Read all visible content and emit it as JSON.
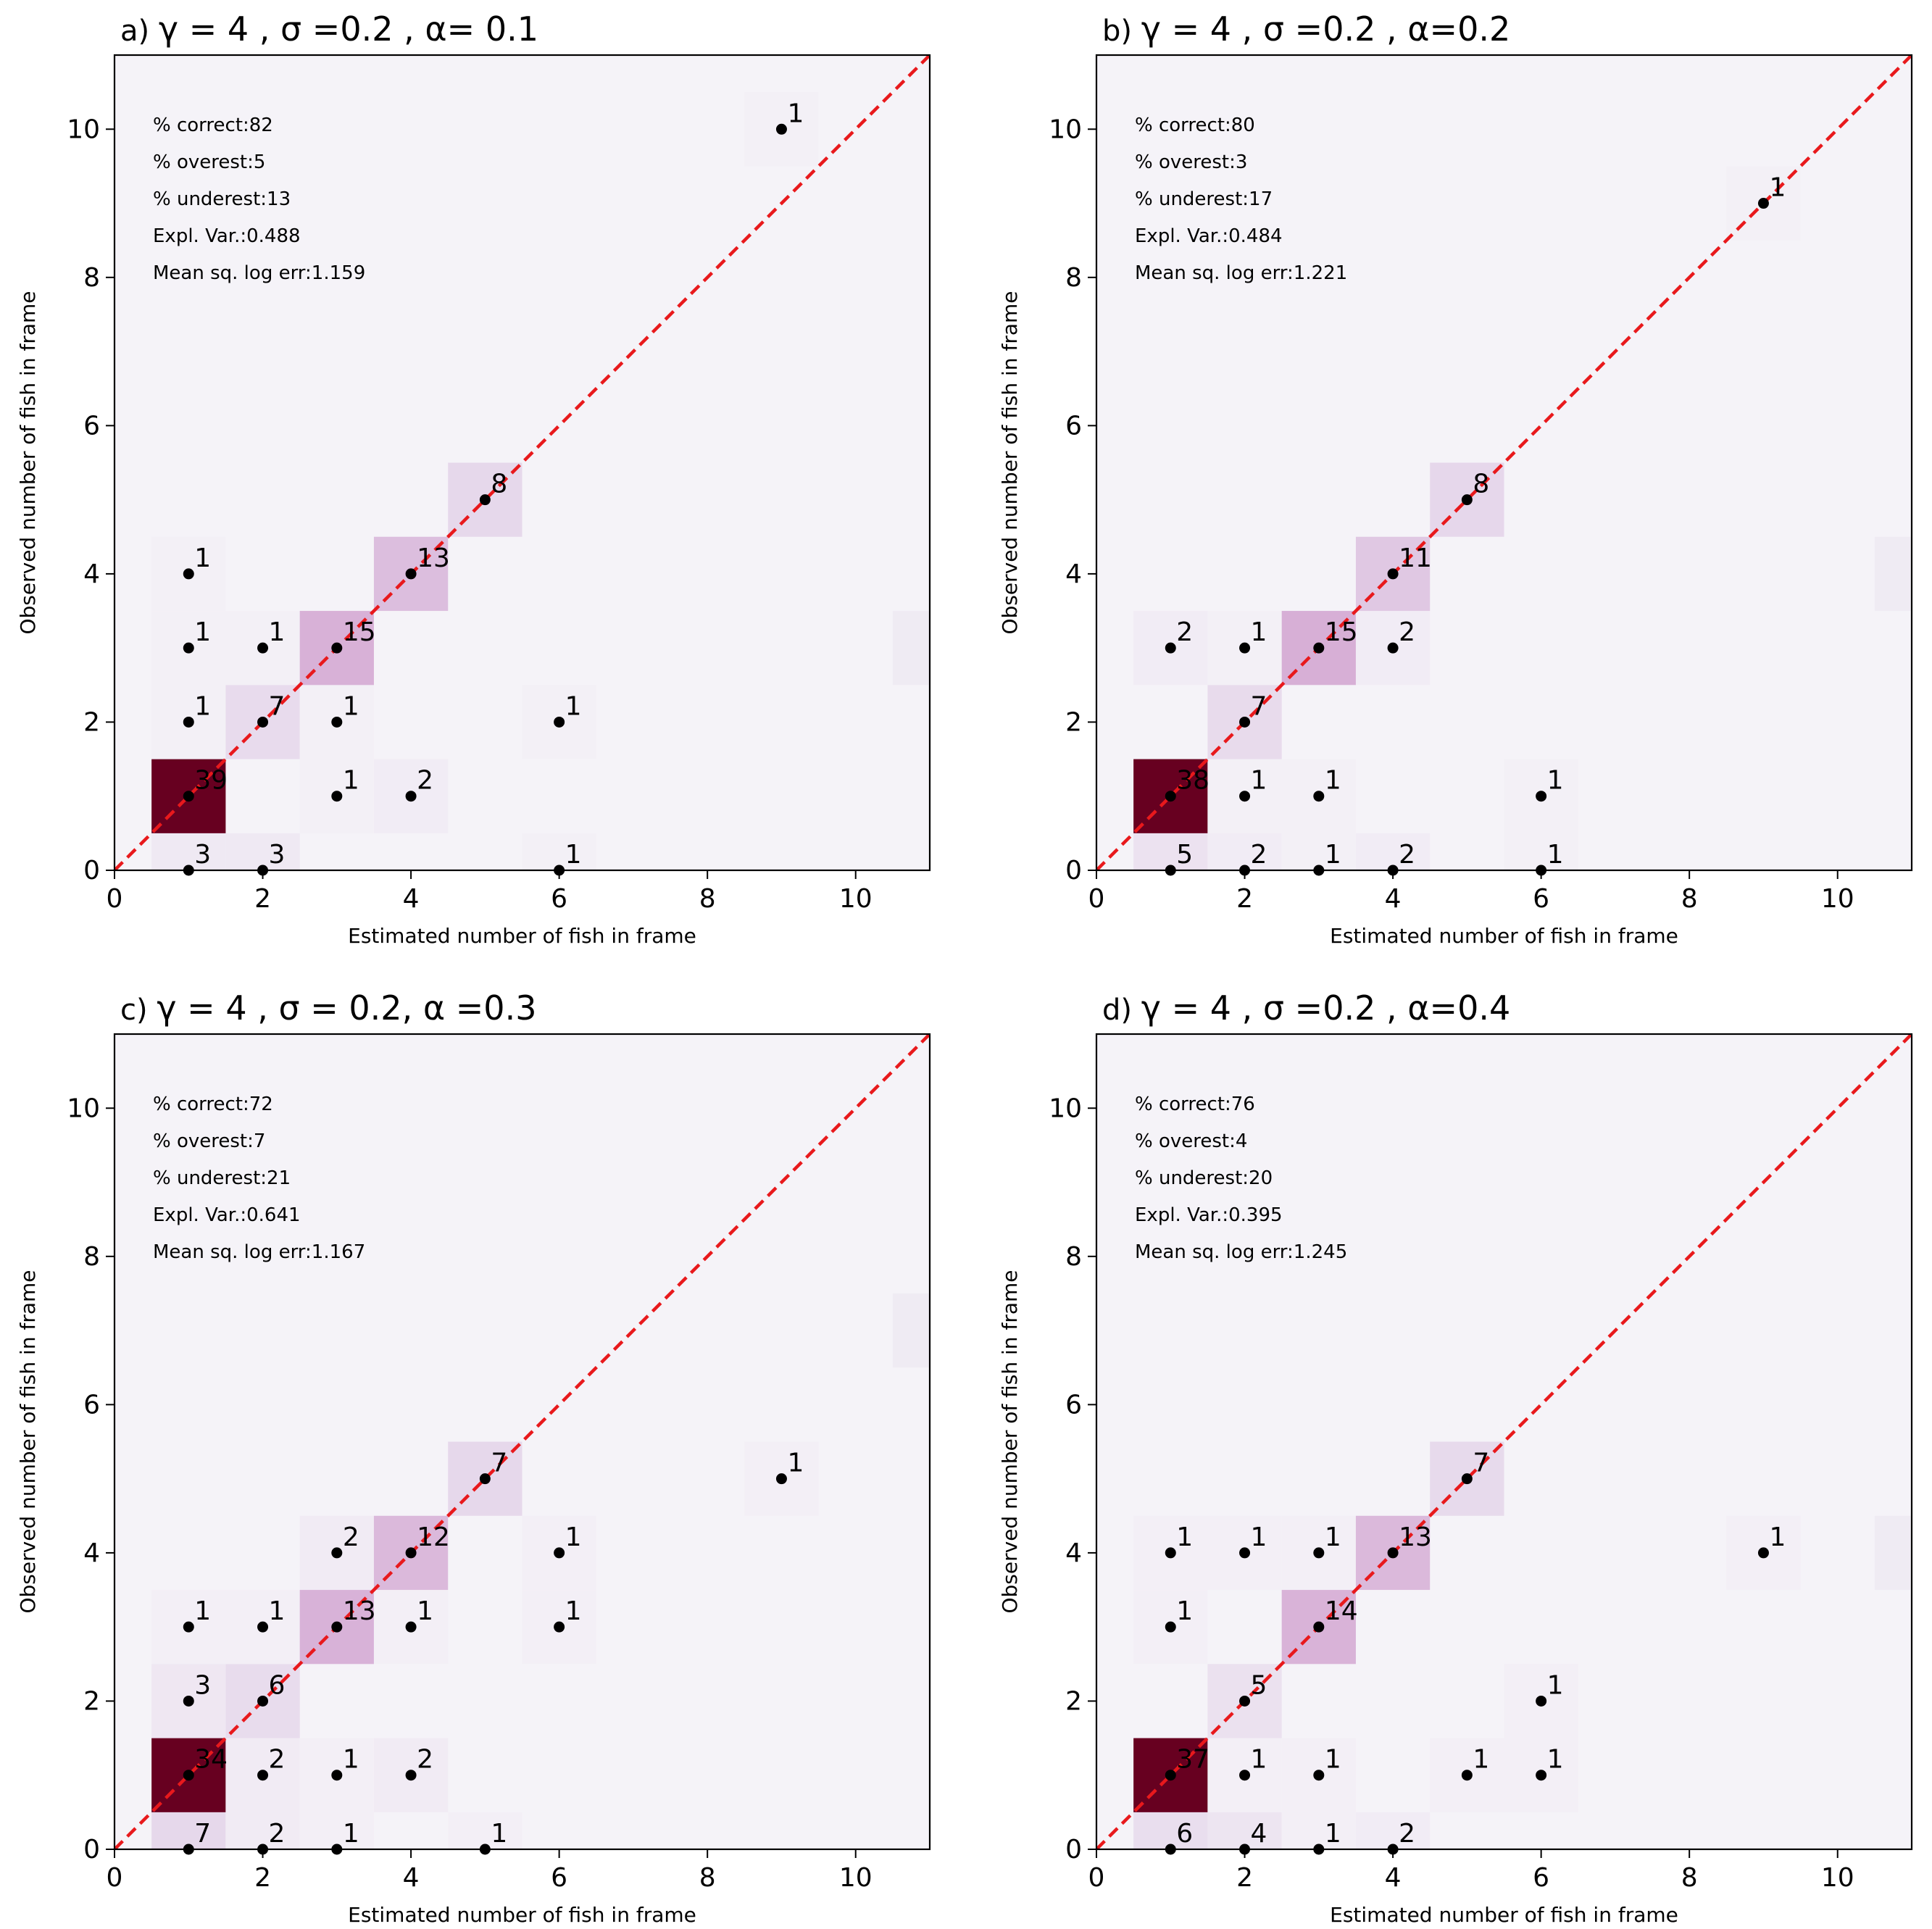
{
  "figure": {
    "background": "#ffffff",
    "plot_background": "#f5f3f8",
    "diagonal_color": "#e8191c",
    "dot_color": "#000000",
    "colormap": [
      "#f5f3f8",
      "#e3d2e8",
      "#cf95c9",
      "#b0467f",
      "#670020"
    ]
  },
  "chart_data": [
    {
      "type": "heatmap",
      "title_letter": "a)",
      "title_gamma": "γ = 4 ,",
      "title_sigma": "σ =0.2 ,",
      "title_alpha": "α= 0.1",
      "xlabel": "Estimated number of fish in frame",
      "ylabel": "Observed number of fish in frame",
      "xlim": [
        0,
        11
      ],
      "ylim": [
        0,
        11
      ],
      "xticks": [
        0,
        2,
        4,
        6,
        8,
        10
      ],
      "yticks": [
        0,
        2,
        4,
        6,
        8,
        10
      ],
      "stats": [
        "% correct:82",
        "% overest:5",
        "% underest:13",
        "Expl. Var.:0.488",
        "Mean sq. log err:1.159"
      ],
      "cells": [
        {
          "x": 1,
          "y": 0,
          "count": 3
        },
        {
          "x": 2,
          "y": 0,
          "count": 3
        },
        {
          "x": 6,
          "y": 0,
          "count": 1
        },
        {
          "x": 1,
          "y": 1,
          "count": 39
        },
        {
          "x": 3,
          "y": 1,
          "count": 1
        },
        {
          "x": 4,
          "y": 1,
          "count": 2
        },
        {
          "x": 1,
          "y": 2,
          "count": 1
        },
        {
          "x": 2,
          "y": 2,
          "count": 7
        },
        {
          "x": 3,
          "y": 2,
          "count": 1
        },
        {
          "x": 6,
          "y": 2,
          "count": 1
        },
        {
          "x": 1,
          "y": 3,
          "count": 1
        },
        {
          "x": 2,
          "y": 3,
          "count": 1
        },
        {
          "x": 3,
          "y": 3,
          "count": 15
        },
        {
          "x": 1,
          "y": 4,
          "count": 1
        },
        {
          "x": 4,
          "y": 4,
          "count": 13
        },
        {
          "x": 5,
          "y": 5,
          "count": 8
        },
        {
          "x": 9,
          "y": 10,
          "count": 1
        }
      ],
      "faint_cells": [
        {
          "x": 11,
          "y": 3
        }
      ]
    },
    {
      "type": "heatmap",
      "title_letter": "b)",
      "title_gamma": "γ = 4 ,",
      "title_sigma": "σ =0.2 ,",
      "title_alpha": "α=0.2",
      "xlabel": "Estimated number of fish in frame",
      "ylabel": "Observed number of fish in frame",
      "xlim": [
        0,
        11
      ],
      "ylim": [
        0,
        11
      ],
      "xticks": [
        0,
        2,
        4,
        6,
        8,
        10
      ],
      "yticks": [
        0,
        2,
        4,
        6,
        8,
        10
      ],
      "stats": [
        "% correct:80",
        "% overest:3",
        "% underest:17",
        "Expl. Var.:0.484",
        "Mean sq. log err:1.221"
      ],
      "cells": [
        {
          "x": 1,
          "y": 0,
          "count": 5
        },
        {
          "x": 2,
          "y": 0,
          "count": 2
        },
        {
          "x": 3,
          "y": 0,
          "count": 1
        },
        {
          "x": 4,
          "y": 0,
          "count": 2
        },
        {
          "x": 6,
          "y": 0,
          "count": 1
        },
        {
          "x": 1,
          "y": 1,
          "count": 38
        },
        {
          "x": 2,
          "y": 1,
          "count": 1
        },
        {
          "x": 3,
          "y": 1,
          "count": 1
        },
        {
          "x": 6,
          "y": 1,
          "count": 1
        },
        {
          "x": 2,
          "y": 2,
          "count": 7
        },
        {
          "x": 1,
          "y": 3,
          "count": 2
        },
        {
          "x": 2,
          "y": 3,
          "count": 1
        },
        {
          "x": 3,
          "y": 3,
          "count": 15
        },
        {
          "x": 4,
          "y": 3,
          "count": 2
        },
        {
          "x": 4,
          "y": 4,
          "count": 11
        },
        {
          "x": 5,
          "y": 5,
          "count": 8
        },
        {
          "x": 9,
          "y": 9,
          "count": 1
        }
      ],
      "faint_cells": [
        {
          "x": 11,
          "y": 4
        }
      ]
    },
    {
      "type": "heatmap",
      "title_letter": "c)",
      "title_gamma": "γ = 4 ,",
      "title_sigma": "σ = 0.2,",
      "title_alpha": "α =0.3",
      "xlabel": "Estimated number of fish in frame",
      "ylabel": "Observed number of fish in frame",
      "xlim": [
        0,
        11
      ],
      "ylim": [
        0,
        11
      ],
      "xticks": [
        0,
        2,
        4,
        6,
        8,
        10
      ],
      "yticks": [
        0,
        2,
        4,
        6,
        8,
        10
      ],
      "stats": [
        "% correct:72",
        "% overest:7",
        "% underest:21",
        "Expl. Var.:0.641",
        "Mean sq. log err:1.167"
      ],
      "cells": [
        {
          "x": 1,
          "y": 0,
          "count": 7
        },
        {
          "x": 2,
          "y": 0,
          "count": 2
        },
        {
          "x": 3,
          "y": 0,
          "count": 1
        },
        {
          "x": 5,
          "y": 0,
          "count": 1
        },
        {
          "x": 1,
          "y": 1,
          "count": 34
        },
        {
          "x": 2,
          "y": 1,
          "count": 2
        },
        {
          "x": 3,
          "y": 1,
          "count": 1
        },
        {
          "x": 4,
          "y": 1,
          "count": 2
        },
        {
          "x": 1,
          "y": 2,
          "count": 3
        },
        {
          "x": 2,
          "y": 2,
          "count": 6
        },
        {
          "x": 1,
          "y": 3,
          "count": 1
        },
        {
          "x": 2,
          "y": 3,
          "count": 1
        },
        {
          "x": 3,
          "y": 3,
          "count": 13
        },
        {
          "x": 4,
          "y": 3,
          "count": 1
        },
        {
          "x": 6,
          "y": 3,
          "count": 1
        },
        {
          "x": 3,
          "y": 4,
          "count": 2
        },
        {
          "x": 4,
          "y": 4,
          "count": 12
        },
        {
          "x": 6,
          "y": 4,
          "count": 1
        },
        {
          "x": 5,
          "y": 5,
          "count": 7
        },
        {
          "x": 9,
          "y": 5,
          "count": 1
        }
      ],
      "faint_cells": [
        {
          "x": 11,
          "y": 7
        }
      ]
    },
    {
      "type": "heatmap",
      "title_letter": "d)",
      "title_gamma": "γ = 4 ,",
      "title_sigma": "σ =0.2 ,",
      "title_alpha": "α=0.4",
      "xlabel": "Estimated number of fish in frame",
      "ylabel": "Observed number of fish in frame",
      "xlim": [
        0,
        11
      ],
      "ylim": [
        0,
        11
      ],
      "xticks": [
        0,
        2,
        4,
        6,
        8,
        10
      ],
      "yticks": [
        0,
        2,
        4,
        6,
        8,
        10
      ],
      "stats": [
        "% correct:76",
        "% overest:4",
        "% underest:20",
        "Expl. Var.:0.395",
        "Mean sq. log err:1.245"
      ],
      "cells": [
        {
          "x": 1,
          "y": 0,
          "count": 6
        },
        {
          "x": 2,
          "y": 0,
          "count": 4
        },
        {
          "x": 3,
          "y": 0,
          "count": 1
        },
        {
          "x": 4,
          "y": 0,
          "count": 2
        },
        {
          "x": 1,
          "y": 1,
          "count": 37
        },
        {
          "x": 2,
          "y": 1,
          "count": 1
        },
        {
          "x": 3,
          "y": 1,
          "count": 1
        },
        {
          "x": 5,
          "y": 1,
          "count": 1
        },
        {
          "x": 6,
          "y": 1,
          "count": 1
        },
        {
          "x": 2,
          "y": 2,
          "count": 5
        },
        {
          "x": 6,
          "y": 2,
          "count": 1
        },
        {
          "x": 1,
          "y": 3,
          "count": 1
        },
        {
          "x": 3,
          "y": 3,
          "count": 14
        },
        {
          "x": 1,
          "y": 4,
          "count": 1
        },
        {
          "x": 2,
          "y": 4,
          "count": 1
        },
        {
          "x": 3,
          "y": 4,
          "count": 1
        },
        {
          "x": 4,
          "y": 4,
          "count": 13
        },
        {
          "x": 9,
          "y": 4,
          "count": 1
        },
        {
          "x": 5,
          "y": 5,
          "count": 7
        }
      ],
      "faint_cells": [
        {
          "x": 11,
          "y": 4
        }
      ]
    }
  ]
}
